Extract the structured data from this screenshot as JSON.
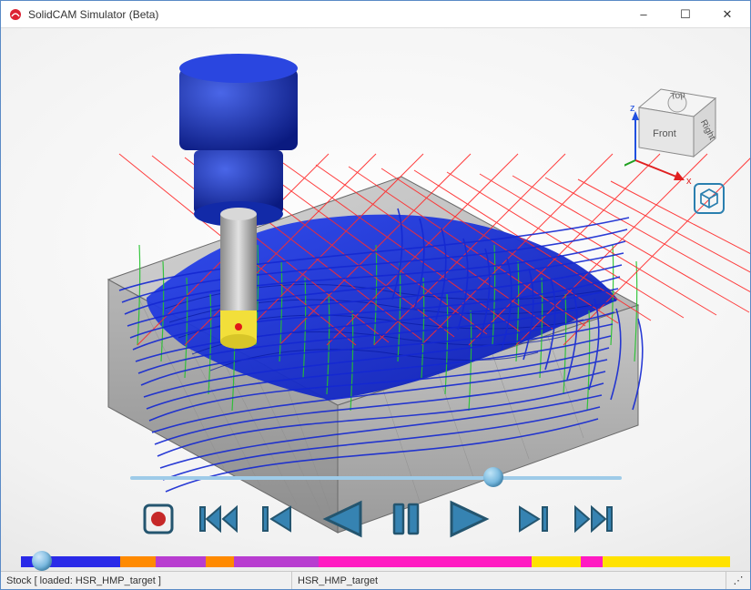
{
  "window": {
    "title": "SolidCAM Simulator (Beta)",
    "buttons": {
      "min": "–",
      "max": "☐",
      "close": "✕"
    }
  },
  "viewcube": {
    "faces": {
      "top": "Top",
      "front": "Front",
      "right": "Right"
    },
    "axes": {
      "x": "x",
      "z": "z"
    },
    "axis_colors": {
      "x": "#e02020",
      "y": "#20a020",
      "z": "#2050e0"
    }
  },
  "viewport": {
    "background_gradient": [
      "#ffffff",
      "#f2f2f2",
      "#d8d8d8"
    ],
    "stock_fill": "#b9b9b9",
    "stock_edge": "#6a6a6a",
    "machined_surface_color": "#1428d2",
    "tool_holder_color": "#1430c0",
    "tool_shank_color": "#bfbfbf",
    "tool_tip_color": "#f2df3a",
    "toolpath_colors": {
      "cut": "#1428d2",
      "link": "#24c22e",
      "rapid": "#ff2a2a"
    }
  },
  "playback": {
    "progress_pct": 74,
    "controls": [
      "record",
      "skip-start",
      "step-back",
      "play-reverse",
      "pause",
      "play-forward",
      "step-forward",
      "skip-end"
    ],
    "button_fill": "#3683b2",
    "button_stroke": "#24556f"
  },
  "timeline": {
    "thumb_pct": 3,
    "segments": [
      {
        "color": "#2a2ae8",
        "pct": 14
      },
      {
        "color": "#ff8a00",
        "pct": 5
      },
      {
        "color": "#b83dd0",
        "pct": 7
      },
      {
        "color": "#ff8a00",
        "pct": 4
      },
      {
        "color": "#b83dd0",
        "pct": 12
      },
      {
        "color": "#ff1bc2",
        "pct": 30
      },
      {
        "color": "#ffe200",
        "pct": 7
      },
      {
        "color": "#ff1bc2",
        "pct": 3
      },
      {
        "color": "#ffe200",
        "pct": 18
      }
    ]
  },
  "statusbar": {
    "stock_label": "Stock [ loaded:  HSR_HMP_target ]",
    "operation": "HSR_HMP_target",
    "resize_grip": "⋰"
  }
}
